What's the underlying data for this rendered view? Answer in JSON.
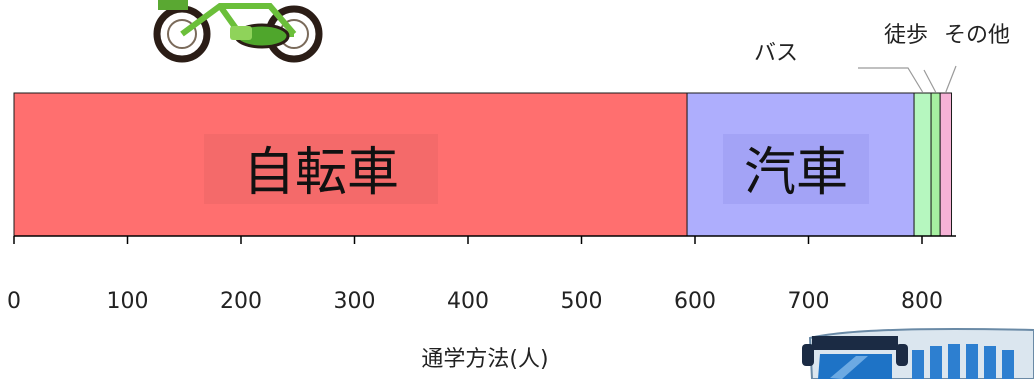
{
  "chart_data": {
    "type": "bar",
    "orientation": "horizontal-stacked",
    "categories": [
      "自転車",
      "汽車",
      "バス",
      "徒歩",
      "その他"
    ],
    "values": [
      593,
      200,
      15,
      8,
      10
    ],
    "colors": [
      "#ff6f6f",
      "#aeaefd",
      "#b6f7bf",
      "#a6f0a0",
      "#f6b2d6"
    ],
    "xlabel": "通学方法(人)",
    "xlim": [
      0,
      830
    ],
    "xticks": [
      0,
      100,
      200,
      300,
      400,
      500,
      600,
      700,
      800
    ],
    "xtick_labels": [
      "0",
      "100",
      "200",
      "300",
      "400",
      "500",
      "600",
      "700",
      "800"
    ]
  },
  "icons": {
    "top_left": "bicycle-icon",
    "bottom_right": "bus-icon"
  }
}
